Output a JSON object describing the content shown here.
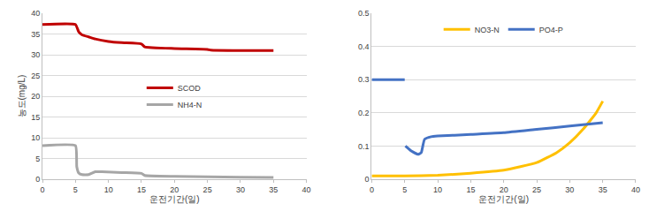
{
  "chart_data": [
    {
      "type": "line",
      "x_label": "운전기간(일)",
      "y_label": "농도(mg/L)",
      "xlim": [
        0,
        40
      ],
      "xticks": [
        0,
        5,
        10,
        15,
        20,
        25,
        30,
        35,
        40
      ],
      "ylim": [
        0,
        40
      ],
      "yticks": [
        0,
        5,
        10,
        15,
        20,
        25,
        30,
        35,
        40
      ],
      "grid": "y",
      "legend": "center",
      "series": [
        {
          "name": "SCOD",
          "color": "#c00000",
          "x": [
            0,
            5,
            5.5,
            6,
            7,
            8,
            10,
            12,
            15,
            15.5,
            20,
            25,
            25.5,
            30,
            35
          ],
          "values": [
            37.3,
            37.3,
            35.5,
            34.8,
            34.3,
            33.8,
            33.2,
            32.9,
            32.6,
            31.9,
            31.5,
            31.3,
            31.1,
            31.0,
            31.0
          ]
        },
        {
          "name": "NH4-N",
          "color": "#a6a6a6",
          "x": [
            0,
            5,
            5.2,
            5.5,
            6,
            7,
            8,
            9,
            12,
            15,
            15.5,
            20,
            25,
            30,
            35
          ],
          "values": [
            8.1,
            8.1,
            3.0,
            1.5,
            1.1,
            1.1,
            1.8,
            1.8,
            1.6,
            1.4,
            0.9,
            0.7,
            0.6,
            0.5,
            0.4
          ]
        }
      ]
    },
    {
      "type": "line",
      "x_label": "운전기간(일)",
      "xlim": [
        0,
        40
      ],
      "xticks": [
        0,
        5,
        10,
        15,
        20,
        25,
        30,
        35,
        40
      ],
      "ylim": [
        0,
        0.5
      ],
      "yticks": [
        0,
        0.1,
        0.2,
        0.3,
        0.4,
        0.5
      ],
      "grid": "y",
      "legend": "top",
      "series": [
        {
          "name": "NO3-N",
          "color": "#ffc000",
          "x": [
            0,
            5,
            10,
            15,
            20,
            25,
            28,
            30,
            32,
            34,
            35
          ],
          "values": [
            0.01,
            0.01,
            0.012,
            0.018,
            0.027,
            0.05,
            0.08,
            0.11,
            0.15,
            0.2,
            0.235
          ]
        },
        {
          "name": "PO4-P",
          "color": "#4472c4",
          "x": [
            0,
            5,
            5.05,
            5.1,
            6,
            7,
            7.5,
            8,
            9,
            10,
            15,
            20,
            25,
            30,
            35
          ],
          "values": [
            0.3,
            0.3,
            null,
            0.1,
            0.085,
            0.075,
            0.08,
            0.12,
            0.128,
            0.13,
            0.135,
            0.14,
            0.15,
            0.16,
            0.17
          ]
        }
      ]
    }
  ]
}
